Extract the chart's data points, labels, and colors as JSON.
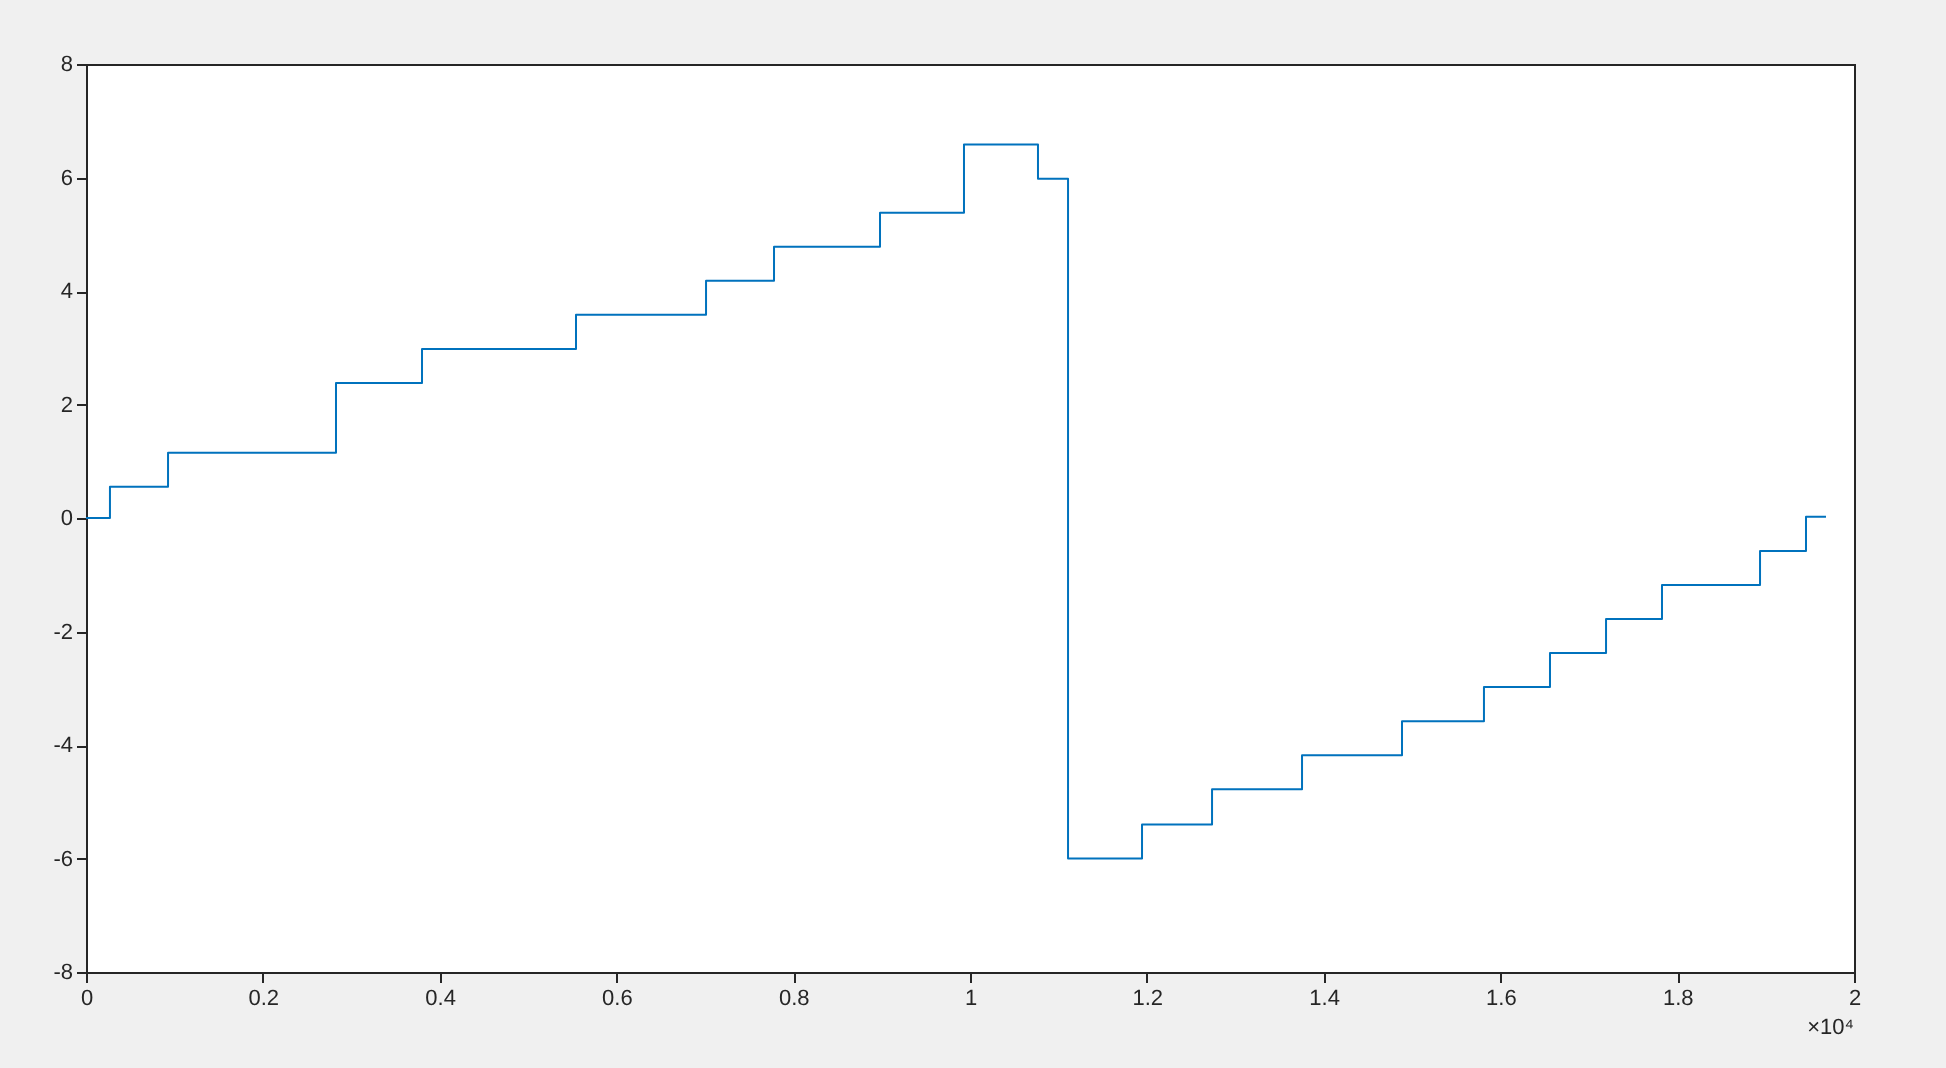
{
  "chart_data": {
    "type": "step",
    "series": [
      {
        "color": "#0072bd",
        "x": [
          0,
          0.0271,
          0.0928,
          0.2828,
          0.3801,
          0.5543,
          0.7014,
          0.7783,
          0.8982,
          0.9932,
          1.0769,
          1.1109,
          1.1946,
          1.2738,
          1.3756,
          1.4887,
          1.5814,
          1.6561,
          1.7195,
          1.7828,
          1.8937,
          1.9457,
          1.9683
        ],
        "values": [
          0,
          0.55,
          1.15,
          2.38,
          2.98,
          3.58,
          4.18,
          4.78,
          5.38,
          6.58,
          5.98,
          -6.0,
          -5.4,
          -4.78,
          -4.18,
          -3.58,
          -2.98,
          -2.38,
          -1.78,
          -1.18,
          -0.58,
          0.02,
          0.02
        ]
      }
    ],
    "xlim": [
      0,
      2
    ],
    "xticks": [
      0,
      0.2,
      0.4,
      0.6,
      0.8,
      1,
      1.2,
      1.4,
      1.6,
      1.8,
      2
    ],
    "ylim": [
      -8,
      8
    ],
    "yticks": [
      -8,
      -6,
      -4,
      -2,
      0,
      2,
      4,
      6,
      8
    ],
    "grid": false,
    "annotations": [
      "×10⁴"
    ]
  }
}
